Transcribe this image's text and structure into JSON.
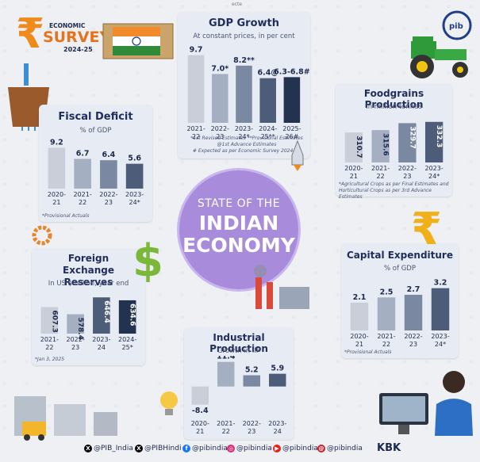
{
  "header": {
    "economic": "ECONOMIC",
    "survey": "SURVEY",
    "year": "2024-25",
    "top_tag": "ecte"
  },
  "center": {
    "line1": "STATE OF THE",
    "line2": "INDIAN",
    "line3": "ECONOMY"
  },
  "colors": {
    "panel": "#e7ebf3",
    "bar_light": "#c9ced8",
    "bar_mid": "#a4afc2",
    "bar_dark1": "#7a88a2",
    "bar_dark2": "#4d5c78",
    "bar_darkest": "#23324f",
    "accent_purple": "#a98bdc"
  },
  "chart_data": [
    {
      "id": "gdp",
      "type": "bar",
      "title": "GDP Growth",
      "subtitle": "At constant prices, in per cent",
      "categories": [
        "2021-22",
        "2022-23",
        "2023-24*",
        "2024-25**",
        "2025-26#"
      ],
      "values": [
        9.7,
        7.0,
        8.2,
        6.4,
        6.55
      ],
      "value_labels": [
        "9.7",
        "7.0*",
        "8.2**",
        "6.4@",
        "6.3-6.8#"
      ],
      "notes": [
        "*1st Revised Estimates **Provisional Estimates",
        "@1st Advance Estimates",
        "# Expected as per Economic Survey 2024-25"
      ]
    },
    {
      "id": "fiscal",
      "type": "bar",
      "title": "Fiscal Deficit",
      "subtitle": "% of GDP",
      "categories": [
        "2020-21",
        "2021-22",
        "2022-23",
        "2023-24*"
      ],
      "values": [
        9.2,
        6.7,
        6.4,
        5.6
      ],
      "value_labels": [
        "9.2",
        "6.7",
        "6.4",
        "5.6"
      ],
      "notes": [
        "*Provisional Actuals"
      ]
    },
    {
      "id": "food",
      "type": "bar",
      "title": "Foodgrains Production",
      "subtitle": "In million tonnes",
      "categories": [
        "2020-21",
        "2021-22",
        "2022-23",
        "2023-24*"
      ],
      "values": [
        310.7,
        315.6,
        329.7,
        332.3
      ],
      "value_labels": [
        "310.7",
        "315.6",
        "329.7",
        "332.3"
      ],
      "notes": [
        "*Agricultural Crops as per Final Estimates and",
        "Horticultural Crops as per 3rd Advance Estimates"
      ]
    },
    {
      "id": "forex",
      "type": "bar",
      "title": "Foreign Exchange Reserves",
      "subtitle": "In US $ billion, year end",
      "categories": [
        "2021-22",
        "2022-23",
        "2023-24",
        "2024-25*"
      ],
      "values": [
        607.3,
        578.4,
        646.4,
        634.6
      ],
      "value_labels": [
        "607.3",
        "578.4",
        "646.4",
        "634.6"
      ],
      "notes": [
        "*Jan 3, 2025"
      ]
    },
    {
      "id": "capex",
      "type": "bar",
      "title": "Capital Expenditure",
      "subtitle": "% of GDP",
      "categories": [
        "2020-21",
        "2021-22",
        "2022-23",
        "2023-24*"
      ],
      "values": [
        2.1,
        2.5,
        2.7,
        3.2
      ],
      "value_labels": [
        "2.1",
        "2.5",
        "2.7",
        "3.2"
      ],
      "notes": [
        "*Provisional Actuals"
      ]
    },
    {
      "id": "iip",
      "type": "bar",
      "title": "Industrial Production",
      "subtitle": "Growth in IIP",
      "categories": [
        "2020-21",
        "2021-22",
        "2022-23",
        "2023-24"
      ],
      "values": [
        -8.4,
        11.4,
        5.2,
        5.9
      ],
      "value_labels": [
        "-8.4",
        "11.4",
        "5.2",
        "5.9"
      ],
      "notes": []
    }
  ],
  "footer": {
    "handles": [
      "@PIB_India",
      "@PIBHindi",
      "@pibindia",
      "@pibindia",
      "@pibindia",
      "@pibindia"
    ],
    "brand": "KBK"
  }
}
